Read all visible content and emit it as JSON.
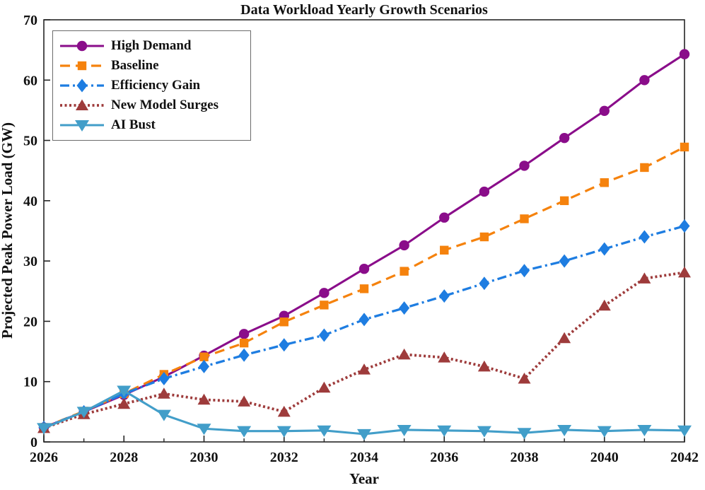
{
  "chart_data": {
    "type": "line",
    "title": "Data Workload Yearly Growth Scenarios",
    "xlabel": "Year",
    "ylabel": "Projected Peak Power Load (GW)",
    "xlim": [
      2026,
      2042
    ],
    "ylim": [
      0,
      70
    ],
    "x_major_ticks": [
      2026,
      2028,
      2030,
      2032,
      2034,
      2036,
      2038,
      2040,
      2042
    ],
    "x_minor_step": 1,
    "y_ticks": [
      0,
      10,
      20,
      30,
      40,
      50,
      60,
      70
    ],
    "grid": false,
    "legend_position": "top-left",
    "axis_color": "#262626",
    "x": [
      2026,
      2027,
      2028,
      2029,
      2030,
      2031,
      2032,
      2033,
      2034,
      2035,
      2036,
      2037,
      2038,
      2039,
      2040,
      2041,
      2042
    ],
    "series": [
      {
        "name": "High Demand",
        "color": "#8A0D8A",
        "line": "solid",
        "marker": "circle",
        "values": [
          2.4,
          5.0,
          7.8,
          10.8,
          14.3,
          17.9,
          20.9,
          24.7,
          28.7,
          32.6,
          37.2,
          41.5,
          45.8,
          50.4,
          54.9,
          60.0,
          64.3
        ]
      },
      {
        "name": "Baseline",
        "color": "#F5820D",
        "line": "dashed",
        "marker": "square",
        "values": [
          2.4,
          5.1,
          8.0,
          11.2,
          14.1,
          16.4,
          19.9,
          22.7,
          25.4,
          28.3,
          31.8,
          34.0,
          37.0,
          40.0,
          43.0,
          45.5,
          48.9
        ]
      },
      {
        "name": "Efficiency Gain",
        "color": "#1E7DE1",
        "line": "dashdot",
        "marker": "diamond",
        "values": [
          2.4,
          5.0,
          8.0,
          10.5,
          12.5,
          14.4,
          16.1,
          17.7,
          20.3,
          22.2,
          24.2,
          26.3,
          28.4,
          30.0,
          32.0,
          34.0,
          35.8
        ]
      },
      {
        "name": "New Model Surges",
        "color": "#9E3B3B",
        "line": "dotted",
        "marker": "triangle-up",
        "values": [
          2.3,
          4.6,
          6.3,
          8.0,
          7.0,
          6.7,
          5.0,
          9.0,
          12.0,
          14.5,
          14.0,
          12.5,
          10.5,
          17.2,
          22.6,
          27.1,
          28.1
        ]
      },
      {
        "name": "AI Bust",
        "color": "#429EC9",
        "line": "solid",
        "marker": "triangle-down",
        "values": [
          2.3,
          5.0,
          8.5,
          4.5,
          2.2,
          1.8,
          1.8,
          1.9,
          1.3,
          2.0,
          1.9,
          1.8,
          1.5,
          2.0,
          1.8,
          2.0,
          1.9
        ]
      }
    ]
  }
}
